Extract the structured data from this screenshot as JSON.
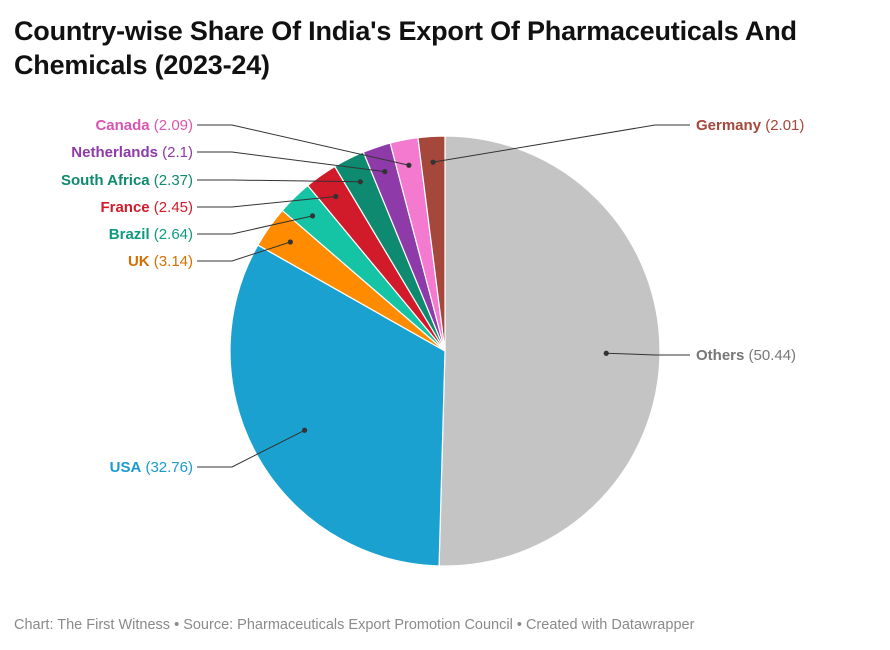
{
  "title": "Country-wise Share Of India's Export Of Pharmaceuticals And Chemicals (2023-24)",
  "footer": {
    "chart_credit": "Chart: The First Witness",
    "source": "Source: Pharmaceuticals Export Promotion Council",
    "tool": "Created with Datawrapper",
    "separator": "•"
  },
  "chart_data": {
    "type": "pie",
    "title": "Country-wise Share Of India's Export Of Pharmaceuticals And Chemicals (2023-24)",
    "slices": [
      {
        "label": "Others",
        "value": 50.44,
        "color": "#c4c4c4",
        "label_color": "#777777"
      },
      {
        "label": "USA",
        "value": 32.76,
        "color": "#1aa1d0",
        "label_color": "#1a9ad0"
      },
      {
        "label": "UK",
        "value": 3.14,
        "color": "#ff8c00",
        "label_color": "#d46f00"
      },
      {
        "label": "Brazil",
        "value": 2.64,
        "color": "#14c4a4",
        "label_color": "#0f9a80"
      },
      {
        "label": "France",
        "value": 2.45,
        "color": "#d11a2a",
        "label_color": "#d11a2a"
      },
      {
        "label": "South Africa",
        "value": 2.37,
        "color": "#0e8a70",
        "label_color": "#0e8a70"
      },
      {
        "label": "Netherlands",
        "value": 2.1,
        "color": "#8e3aa8",
        "label_color": "#8e3aa8"
      },
      {
        "label": "Canada",
        "value": 2.09,
        "color": "#f47ad0",
        "label_color": "#d856b0"
      },
      {
        "label": "Germany",
        "value": 2.01,
        "color": "#a5473a",
        "label_color": "#a5473a"
      }
    ]
  }
}
